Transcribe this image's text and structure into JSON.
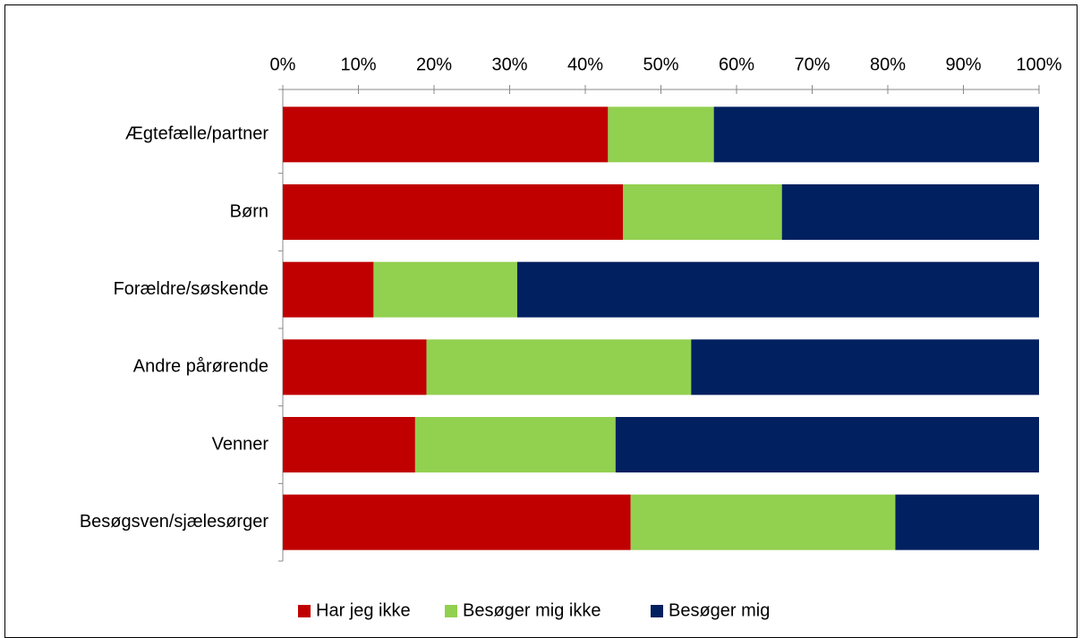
{
  "chart_data": {
    "type": "stacked-barh",
    "categories": [
      "Ægtefælle/partner",
      "Børn",
      "Forældre/søskende",
      "Andre pårørende",
      "Venner",
      "Besøgsven/sjælesørger"
    ],
    "series": [
      {
        "name": "Har jeg ikke",
        "color": "#c00000",
        "values": [
          43,
          45,
          12,
          19,
          17.5,
          46
        ]
      },
      {
        "name": "Besøger mig ikke",
        "color": "#92d050",
        "values": [
          14,
          21,
          19,
          35,
          26.5,
          35
        ]
      },
      {
        "name": "Besøger mig",
        "color": "#002060",
        "values": [
          43,
          34,
          69,
          46,
          56,
          19
        ]
      }
    ],
    "xlim": [
      0,
      100
    ],
    "xticks": [
      {
        "value": 0,
        "label": "0%"
      },
      {
        "value": 10,
        "label": "10%"
      },
      {
        "value": 20,
        "label": "20%"
      },
      {
        "value": 30,
        "label": "30%"
      },
      {
        "value": 40,
        "label": "40%"
      },
      {
        "value": 50,
        "label": "50%"
      },
      {
        "value": 60,
        "label": "60%"
      },
      {
        "value": 70,
        "label": "70%"
      },
      {
        "value": 80,
        "label": "80%"
      },
      {
        "value": 90,
        "label": "90%"
      },
      {
        "value": 100,
        "label": "100%"
      }
    ],
    "legend": "bottom"
  }
}
